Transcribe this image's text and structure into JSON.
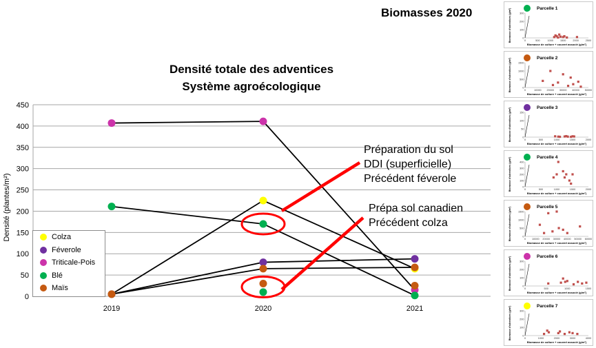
{
  "page": {
    "title": "Biomasses 2020"
  },
  "chart_data": [
    {
      "type": "line",
      "title": "Densité totale des adventices",
      "subtitle": "Système agroécologique",
      "ylabel": "Densité (plantes/m²)",
      "xlabel": "",
      "ylim": [
        0,
        450
      ],
      "yticks": [
        "0",
        "50",
        "100",
        "150",
        "200",
        "250",
        "300",
        "350",
        "400",
        "450"
      ],
      "categories": [
        "2019",
        "2020",
        "2021"
      ],
      "grid": true,
      "legend_position": "bottom-left",
      "series": [
        {
          "name": "Colza",
          "color": "#ffff00",
          "values": [
            5,
            225,
            65
          ]
        },
        {
          "name": "Féverole",
          "color": "#7030a0",
          "values": [
            5,
            80,
            88
          ]
        },
        {
          "name": "Triticale-Pois",
          "color": "#cc33aa",
          "values": [
            407,
            411,
            15
          ]
        },
        {
          "name": "Blé",
          "color": "#00b050",
          "values": [
            211,
            170,
            2
          ]
        },
        {
          "name": "Maïs",
          "color": "#c55a11",
          "values": [
            5,
            65,
            68
          ]
        }
      ],
      "extra_points": [
        {
          "category": "2020",
          "value": 10,
          "color": "#00b050"
        },
        {
          "category": "2020",
          "value": 30,
          "color": "#c55a11"
        },
        {
          "category": "2021",
          "value": 25,
          "color": "#c55a11"
        }
      ],
      "highlight_circles": [
        {
          "category": "2020",
          "value": 170
        },
        {
          "category": "2020",
          "value": 22
        }
      ],
      "line_color": "#000000",
      "annotations": [
        {
          "lines": [
            "Préparation du sol",
            "DDI (superficielle)",
            "Précédent féverole"
          ]
        },
        {
          "lines": [
            "Prépa sol canadien",
            "Précédent colza"
          ]
        }
      ]
    },
    {
      "type": "scatter",
      "title": "Parcelle 1",
      "dot_color": "#00b050",
      "ylabel": "Biomasse d'adventices (g/m²)",
      "xlabel": "Biomasse de culture + couvert associé (g/m²)",
      "xticks": [
        "0",
        "500",
        "1000",
        "1500",
        "2000",
        "2500"
      ],
      "yticks": [
        "0",
        "100",
        "200",
        "300"
      ],
      "xlim": [
        0,
        2500
      ],
      "ylim": [
        0,
        300
      ],
      "x": [
        1150,
        1200,
        1250,
        1300,
        1350,
        1400,
        1500,
        1550,
        1650,
        2050
      ],
      "y": [
        10,
        30,
        20,
        5,
        40,
        15,
        10,
        20,
        5,
        10
      ]
    },
    {
      "type": "scatter",
      "title": "Parcelle 2",
      "dot_color": "#c55a11",
      "ylabel": "Biomasse d'adventices (g/m²)",
      "xlabel": "Biomasse de culture + couvert associé (g/m²)",
      "xticks": [
        "0",
        "10000",
        "20000",
        "30000",
        "40000",
        "50000"
      ],
      "yticks": [
        "0",
        "500",
        "1000",
        "1500"
      ],
      "xlim": [
        0,
        50000
      ],
      "ylim": [
        0,
        1500
      ],
      "x": [
        14000,
        20000,
        22000,
        26000,
        30000,
        34000,
        36000,
        38000,
        42000,
        44000
      ],
      "y": [
        400,
        1000,
        150,
        300,
        800,
        100,
        600,
        200,
        350,
        50
      ]
    },
    {
      "type": "scatter",
      "title": "Parcelle 3",
      "dot_color": "#7030a0",
      "ylabel": "Biomasse d'adventices (g/m²)",
      "xlabel": "Biomasse de culture + couvert associé (g/m²)",
      "xticks": [
        "0",
        "500",
        "1000",
        "1500",
        "2000"
      ],
      "yticks": [
        "0",
        "50",
        "100",
        "150"
      ],
      "xlim": [
        0,
        2000
      ],
      "ylim": [
        0,
        150
      ],
      "x": [
        950,
        1050,
        1100,
        1250,
        1300,
        1350,
        1450,
        1500,
        1550
      ],
      "y": [
        5,
        3,
        2,
        4,
        6,
        3,
        2,
        5,
        4
      ]
    },
    {
      "type": "scatter",
      "title": "Parcelle 4",
      "dot_color": "#00b050",
      "ylabel": "Biomasse d'adventices (g/m²)",
      "xlabel": "Biomasse de culture + couvert associé (g/m²)",
      "xticks": [
        "0",
        "500",
        "1000",
        "1500",
        "2000"
      ],
      "yticks": [
        "0",
        "100",
        "200",
        "300",
        "400"
      ],
      "xlim": [
        0,
        2000
      ],
      "ylim": [
        0,
        400
      ],
      "x": [
        900,
        1000,
        1050,
        1200,
        1250,
        1300,
        1400,
        1450,
        1500
      ],
      "y": [
        150,
        200,
        400,
        250,
        150,
        200,
        100,
        50,
        200
      ]
    },
    {
      "type": "scatter",
      "title": "Parcelle 5",
      "dot_color": "#c55a11",
      "ylabel": "Biomasse d'adventices (g/m²)",
      "xlabel": "Biomasse de culture + couvert associé (g/m²)",
      "xticks": [
        "0",
        "10000",
        "20000",
        "30000",
        "40000",
        "50000",
        "60000"
      ],
      "yticks": [
        "0",
        "500",
        "1000",
        "1500"
      ],
      "xlim": [
        0,
        60000
      ],
      "ylim": [
        0,
        1500
      ],
      "x": [
        14000,
        18000,
        22000,
        26000,
        30000,
        32000,
        36000,
        40000,
        52000
      ],
      "y": [
        700,
        200,
        1400,
        300,
        1500,
        500,
        400,
        200,
        600
      ]
    },
    {
      "type": "scatter",
      "title": "Parcelle 6",
      "dot_color": "#cc33aa",
      "ylabel": "Biomasse d'adventices (g/m²)",
      "xlabel": "Biomasse de culture + couvert associé (g/m²)",
      "xticks": [
        "0",
        "500",
        "1000",
        "1500"
      ],
      "yticks": [
        "0",
        "100",
        "200",
        "300"
      ],
      "xlim": [
        0,
        1500
      ],
      "ylim": [
        0,
        300
      ],
      "x": [
        550,
        850,
        900,
        950,
        1000,
        1150,
        1250,
        1350,
        1450
      ],
      "y": [
        30,
        40,
        90,
        50,
        60,
        20,
        50,
        30,
        40
      ]
    },
    {
      "type": "scatter",
      "title": "Parcelle 7",
      "dot_color": "#ffff00",
      "ylabel": "Biomasse d'adventices (g/m²)",
      "xlabel": "Biomasse de culture + couvert associé (g/m²)",
      "xticks": [
        "0",
        "1000",
        "2000",
        "3000",
        "4000"
      ],
      "yticks": [
        "0",
        "100",
        "200",
        "300"
      ],
      "xlim": [
        0,
        4000
      ],
      "ylim": [
        0,
        300
      ],
      "x": [
        1200,
        1400,
        1500,
        2100,
        2200,
        2500,
        2800,
        3000,
        3300
      ],
      "y": [
        20,
        60,
        40,
        30,
        50,
        20,
        40,
        30,
        20
      ]
    }
  ]
}
